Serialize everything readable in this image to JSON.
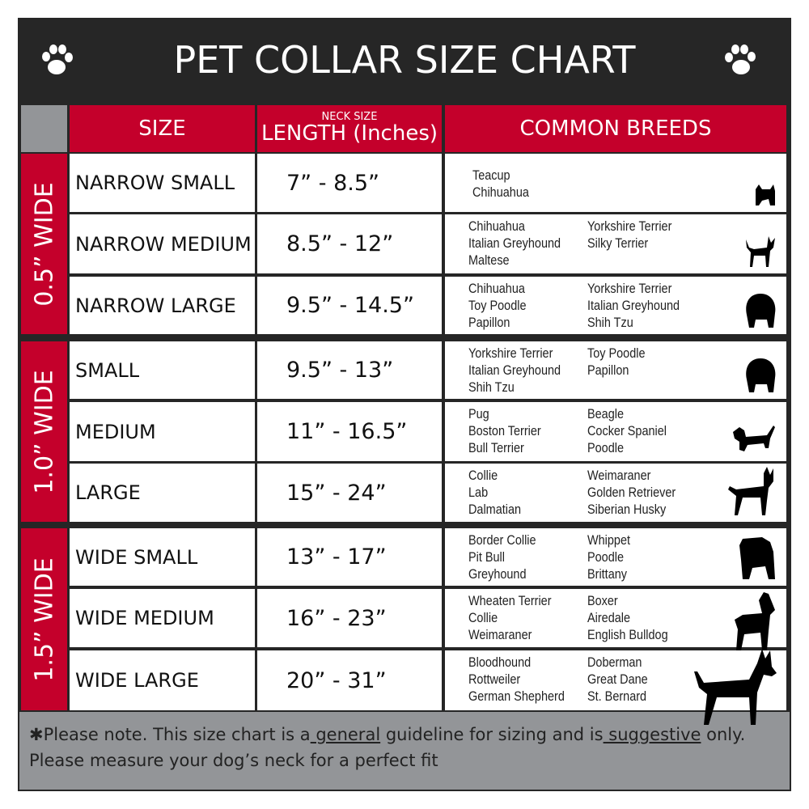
{
  "title": "PET COLLAR SIZE CHART",
  "icons": {
    "left": "paw-print-icon",
    "right": "paw-print-icon"
  },
  "colors": {
    "accent": "#c4002b",
    "dark": "#262626",
    "gray": "#939598"
  },
  "headers": {
    "size": "SIZE",
    "length_top": "NECK SIZE",
    "length": "LENGTH (Inches)",
    "breeds": "COMMON BREEDS"
  },
  "groups": [
    {
      "label": "0.5” WIDE"
    },
    {
      "label": "1.0” WIDE"
    },
    {
      "label": "1.5” WIDE"
    }
  ],
  "rows": [
    {
      "size": "NARROW SMALL",
      "length": "7” - 8.5”",
      "breeds_a": [
        "Teacup",
        "Chihuahua"
      ],
      "breeds_b": [],
      "icon": "yorkie-silhouette-icon"
    },
    {
      "size": "NARROW MEDIUM",
      "length": "8.5” - 12”",
      "breeds_a": [
        "Chihuahua",
        "Italian Greyhound",
        "Maltese"
      ],
      "breeds_b": [
        "Yorkshire Terrier",
        "Silky Terrier"
      ],
      "icon": "chihuahua-silhouette-icon"
    },
    {
      "size": "NARROW LARGE",
      "length": "9.5” - 14.5”",
      "breeds_a": [
        "Chihuahua",
        "Toy Poodle",
        "Papillon"
      ],
      "breeds_b": [
        "Yorkshire Terrier",
        "Italian Greyhound",
        "Shih Tzu"
      ],
      "icon": "pomeranian-silhouette-icon"
    },
    {
      "size": "SMALL",
      "length": "9.5” - 13”",
      "breeds_a": [
        "Yorkshire Terrier",
        "Italian Greyhound",
        "Shih Tzu"
      ],
      "breeds_b": [
        "Toy Poodle",
        "Papillon"
      ],
      "icon": "pomeranian-silhouette-icon"
    },
    {
      "size": "MEDIUM",
      "length": "11” - 16.5”",
      "breeds_a": [
        "Pug",
        "Boston Terrier",
        "Bull Terrier"
      ],
      "breeds_b": [
        "Beagle",
        "Cocker Spaniel",
        "Poodle"
      ],
      "icon": "dachshund-silhouette-icon"
    },
    {
      "size": "LARGE",
      "length": "15” - 24”",
      "breeds_a": [
        "Collie",
        "Lab",
        "Dalmatian"
      ],
      "breeds_b": [
        "Weimaraner",
        "Golden Retriever",
        "Siberian Husky"
      ],
      "icon": "shepherd-silhouette-icon"
    },
    {
      "size": "WIDE SMALL",
      "length": "13” - 17”",
      "breeds_a": [
        "Border Collie",
        "Pit Bull",
        "Greyhound"
      ],
      "breeds_b": [
        "Whippet",
        "Poodle",
        "Brittany"
      ],
      "icon": "bulldog-silhouette-icon"
    },
    {
      "size": "WIDE MEDIUM",
      "length": "16” - 23”",
      "breeds_a": [
        "Wheaten Terrier",
        "Collie",
        "Weimaraner"
      ],
      "breeds_b": [
        "Boxer",
        "Airedale",
        "English Bulldog"
      ],
      "icon": "pitbull-silhouette-icon"
    },
    {
      "size": "WIDE LARGE",
      "length": "20” - 31”",
      "breeds_a": [
        "Bloodhound",
        "Rottweiler",
        "German Shepherd"
      ],
      "breeds_b": [
        "Doberman",
        "Great Dane",
        "St. Bernard"
      ],
      "icon": "doberman-silhouette-icon"
    }
  ],
  "footer": {
    "p1": "✱Please note. This size chart is a",
    "u1": " general",
    "p2": " guideline for sizing and is",
    "u2": " suggestive",
    "p3": " only.",
    "line2": "Please measure your dog’s neck for a perfect fit"
  }
}
